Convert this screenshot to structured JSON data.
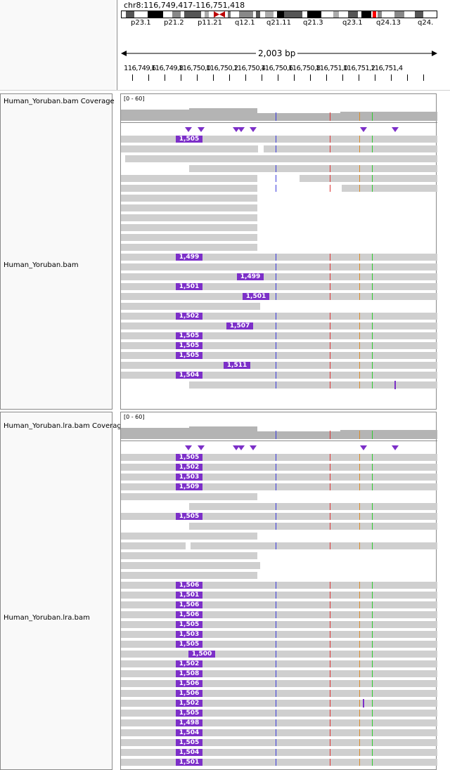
{
  "locus": "chr8:116,749,417-116,751,418",
  "span": "2,003 bp",
  "cytobands": [
    "p23.1",
    "p21.2",
    "p11.21",
    "q12.1",
    "q21.11",
    "q21.3",
    "q23.1",
    "q24.13",
    "q24."
  ],
  "ruler_ticks": [
    "116,749,6",
    "116,749,8",
    "116,750,0",
    "116,750,2",
    "116,750,4",
    "116,750,6",
    "116,750,8",
    "116,751,0",
    "116,751,2",
    "116,751,4"
  ],
  "colors": {
    "insertion": "#7c2fc8",
    "read": "#cfcfcf",
    "coverage": "#b4b4b4",
    "mismatch_blue": "#3a3adc",
    "mismatch_red": "#dc3232",
    "mismatch_orange": "#d98c2a",
    "mismatch_green": "#2ecc2e"
  },
  "tracks": [
    {
      "coverage_label": "Human_Yoruban.bam Coverage",
      "coverage_range": "[0 - 60]",
      "alignment_label": "Human_Yoruban.bam",
      "insertions": [
        "1,505",
        "1,499",
        "1,499",
        "1,501",
        "1,501",
        "1,502",
        "1,507",
        "1,505",
        "1,505",
        "1,505",
        "1,511",
        "1,504"
      ]
    },
    {
      "coverage_label": "Human_Yoruban.lra.bam Coverage",
      "coverage_range": "[0 - 60]",
      "alignment_label": "Human_Yoruban.lra.bam",
      "insertions": [
        "1,505",
        "1,502",
        "1,503",
        "1,509",
        "1,505",
        "1,506",
        "1,501",
        "1,506",
        "1,506",
        "1,505",
        "1,503",
        "1,505",
        "1,500",
        "1,502",
        "1,508",
        "1,506",
        "1,506",
        "1,502",
        "1,505",
        "1,498",
        "1,504",
        "1,505",
        "1,504",
        "1,501"
      ]
    }
  ]
}
